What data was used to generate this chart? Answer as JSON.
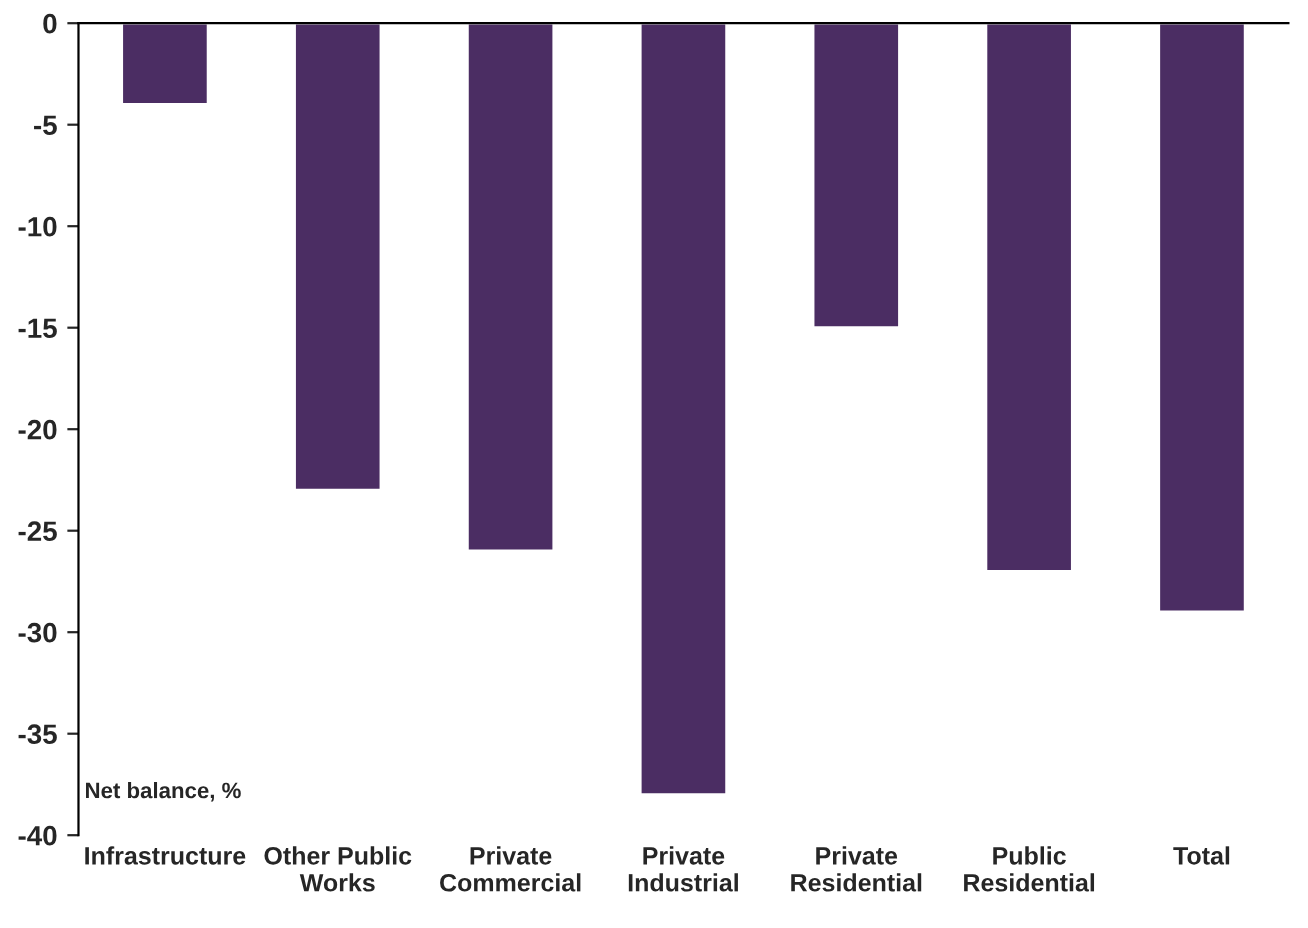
{
  "chart_data": {
    "type": "bar",
    "categories": [
      "Infrastructure",
      "Other Public\nWorks",
      "Private\nCommercial",
      "Private\nIndustrial",
      "Private\nResidential",
      "Public\nResidential",
      "Total"
    ],
    "values": [
      -4,
      -23,
      -26,
      -38,
      -15,
      -27,
      -29
    ],
    "color": "#4b2d63",
    "ylabel": "Net balance, %",
    "ylim": [
      -40,
      0
    ],
    "yticks": [
      -40,
      -35,
      -30,
      -25,
      -20,
      -15,
      -10,
      -5,
      0
    ],
    "grid": false,
    "legend": false
  }
}
